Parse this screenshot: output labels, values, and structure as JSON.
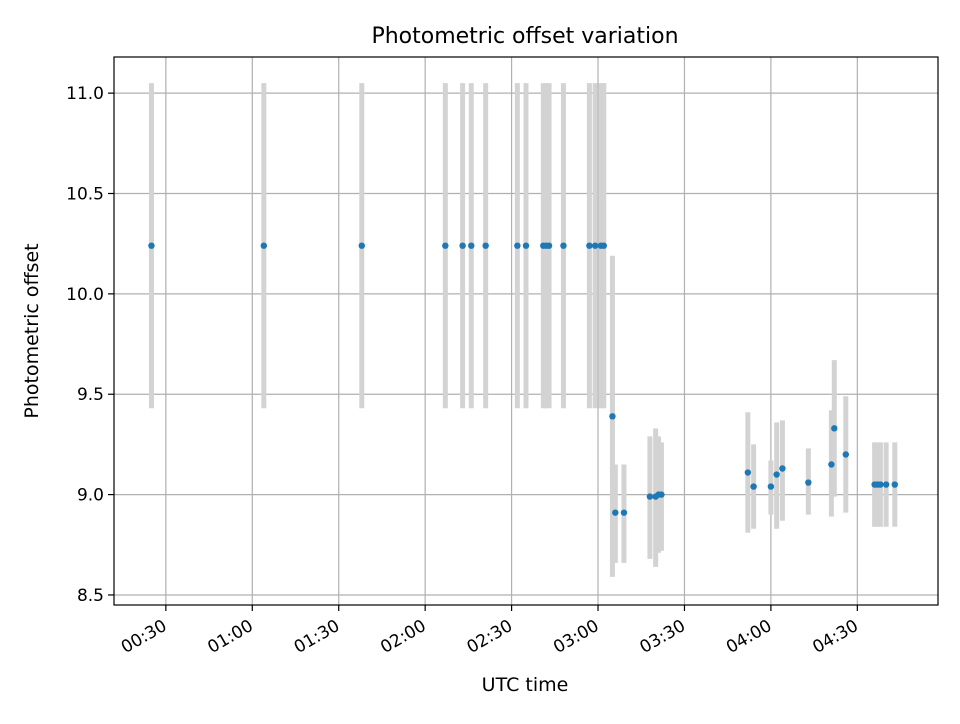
{
  "chart_data": {
    "type": "scatter",
    "title": "Photometric offset variation",
    "xlabel": "UTC time",
    "ylabel": "Photometric offset",
    "xlim": [
      "00:12",
      "04:58"
    ],
    "ylim": [
      8.45,
      11.18
    ],
    "x_ticks": [
      "00:30",
      "01:00",
      "01:30",
      "02:00",
      "02:30",
      "03:00",
      "03:30",
      "04:00",
      "04:30"
    ],
    "y_ticks": [
      "8.5",
      "9.0",
      "9.5",
      "10.0",
      "10.5",
      "11.0"
    ],
    "grid": true,
    "legend": "none",
    "colors": {
      "point": "#1f77b4",
      "errorbar": "#d3d3d3",
      "grid": "#b0b0b0",
      "axes": "#000000"
    },
    "points": [
      {
        "x": "00:25",
        "y": 10.24,
        "ylow": 9.43,
        "yhigh": 11.05
      },
      {
        "x": "01:04",
        "y": 10.24,
        "ylow": 9.43,
        "yhigh": 11.05
      },
      {
        "x": "01:38",
        "y": 10.24,
        "ylow": 9.43,
        "yhigh": 11.05
      },
      {
        "x": "02:07",
        "y": 10.24,
        "ylow": 9.43,
        "yhigh": 11.05
      },
      {
        "x": "02:13",
        "y": 10.24,
        "ylow": 9.43,
        "yhigh": 11.05
      },
      {
        "x": "02:16",
        "y": 10.24,
        "ylow": 9.43,
        "yhigh": 11.05
      },
      {
        "x": "02:21",
        "y": 10.24,
        "ylow": 9.43,
        "yhigh": 11.05
      },
      {
        "x": "02:32",
        "y": 10.24,
        "ylow": 9.43,
        "yhigh": 11.05
      },
      {
        "x": "02:35",
        "y": 10.24,
        "ylow": 9.43,
        "yhigh": 11.05
      },
      {
        "x": "02:41",
        "y": 10.24,
        "ylow": 9.43,
        "yhigh": 11.05
      },
      {
        "x": "02:42",
        "y": 10.24,
        "ylow": 9.43,
        "yhigh": 11.05
      },
      {
        "x": "02:43",
        "y": 10.24,
        "ylow": 9.43,
        "yhigh": 11.05
      },
      {
        "x": "02:48",
        "y": 10.24,
        "ylow": 9.43,
        "yhigh": 11.05
      },
      {
        "x": "02:57",
        "y": 10.24,
        "ylow": 9.43,
        "yhigh": 11.05
      },
      {
        "x": "02:59",
        "y": 10.24,
        "ylow": 9.43,
        "yhigh": 11.05
      },
      {
        "x": "03:01",
        "y": 10.24,
        "ylow": 9.43,
        "yhigh": 11.05
      },
      {
        "x": "03:02",
        "y": 10.24,
        "ylow": 9.43,
        "yhigh": 11.05
      },
      {
        "x": "03:05",
        "y": 9.39,
        "ylow": 8.59,
        "yhigh": 10.19
      },
      {
        "x": "03:06",
        "y": 8.91,
        "ylow": 8.66,
        "yhigh": 9.15
      },
      {
        "x": "03:09",
        "y": 8.91,
        "ylow": 8.66,
        "yhigh": 9.15
      },
      {
        "x": "03:18",
        "y": 8.99,
        "ylow": 8.68,
        "yhigh": 9.29
      },
      {
        "x": "03:20",
        "y": 8.99,
        "ylow": 8.64,
        "yhigh": 9.33
      },
      {
        "x": "03:21",
        "y": 9.0,
        "ylow": 8.71,
        "yhigh": 9.29
      },
      {
        "x": "03:22",
        "y": 9.0,
        "ylow": 8.72,
        "yhigh": 9.26
      },
      {
        "x": "03:52",
        "y": 9.11,
        "ylow": 8.81,
        "yhigh": 9.41
      },
      {
        "x": "03:54",
        "y": 9.04,
        "ylow": 8.83,
        "yhigh": 9.25
      },
      {
        "x": "04:00",
        "y": 9.04,
        "ylow": 8.9,
        "yhigh": 9.17
      },
      {
        "x": "04:02",
        "y": 9.1,
        "ylow": 8.83,
        "yhigh": 9.36
      },
      {
        "x": "04:04",
        "y": 9.13,
        "ylow": 8.87,
        "yhigh": 9.37
      },
      {
        "x": "04:13",
        "y": 9.06,
        "ylow": 8.9,
        "yhigh": 9.23
      },
      {
        "x": "04:21",
        "y": 9.15,
        "ylow": 8.89,
        "yhigh": 9.42
      },
      {
        "x": "04:22",
        "y": 9.33,
        "ylow": 8.99,
        "yhigh": 9.67
      },
      {
        "x": "04:26",
        "y": 9.2,
        "ylow": 8.91,
        "yhigh": 9.49
      },
      {
        "x": "04:36",
        "y": 9.05,
        "ylow": 8.84,
        "yhigh": 9.26
      },
      {
        "x": "04:37",
        "y": 9.05,
        "ylow": 8.84,
        "yhigh": 9.26
      },
      {
        "x": "04:38",
        "y": 9.05,
        "ylow": 8.84,
        "yhigh": 9.26
      },
      {
        "x": "04:40",
        "y": 9.05,
        "ylow": 8.84,
        "yhigh": 9.26
      },
      {
        "x": "04:43",
        "y": 9.05,
        "ylow": 8.84,
        "yhigh": 9.26
      }
    ]
  }
}
